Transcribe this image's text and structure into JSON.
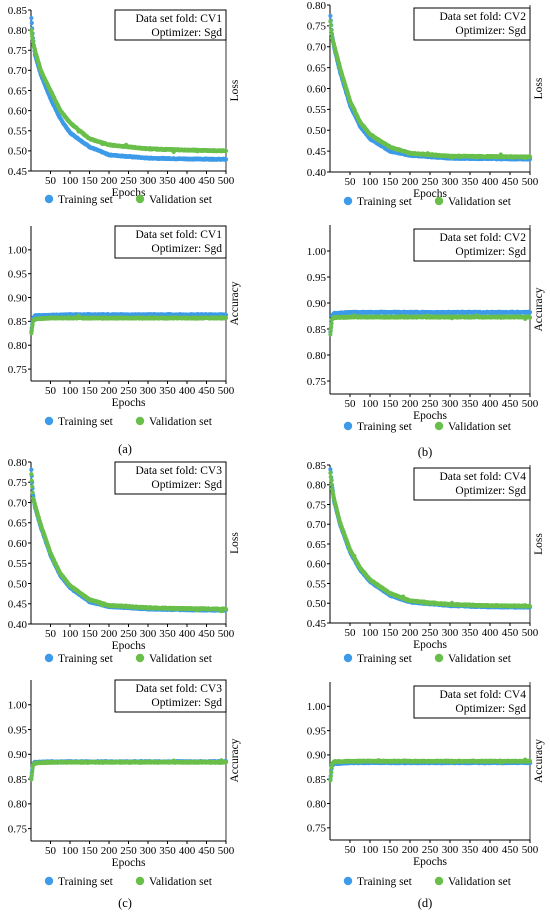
{
  "legend": {
    "training": "Training set",
    "validation": "Validation set",
    "training_color": "#3d9be9",
    "validation_color": "#6abf4b"
  },
  "panel_labels": [
    "(a)",
    "(b)",
    "(c)",
    "(d)"
  ],
  "chart_data": [
    {
      "type": "scatter",
      "panel": "(a)",
      "metric": "loss",
      "box_line1": "Data set fold: CV1",
      "box_line2": "Optimizer: Sgd",
      "xlabel": "Epochs",
      "ylabel": "Loss",
      "xlim": [
        0,
        500
      ],
      "ylim": [
        0.45,
        0.85
      ],
      "xticks": [
        50,
        100,
        150,
        200,
        250,
        300,
        350,
        400,
        450,
        500
      ],
      "yticks": [
        0.45,
        0.5,
        0.55,
        0.6,
        0.65,
        0.7,
        0.75,
        0.8,
        0.85
      ],
      "series": [
        {
          "name": "Training set",
          "color": "#3d9be9",
          "x": [
            1,
            5,
            10,
            25,
            50,
            75,
            100,
            150,
            200,
            300,
            400,
            500
          ],
          "y": [
            0.83,
            0.78,
            0.74,
            0.69,
            0.63,
            0.58,
            0.545,
            0.51,
            0.49,
            0.482,
            0.48,
            0.479
          ]
        },
        {
          "name": "Validation set",
          "color": "#6abf4b",
          "x": [
            1,
            5,
            10,
            25,
            50,
            75,
            100,
            150,
            200,
            300,
            400,
            500
          ],
          "y": [
            0.8,
            0.77,
            0.75,
            0.7,
            0.65,
            0.6,
            0.57,
            0.53,
            0.515,
            0.505,
            0.502,
            0.5
          ]
        }
      ]
    },
    {
      "type": "scatter",
      "panel": "(b)",
      "metric": "loss",
      "box_line1": "Data set fold: CV2",
      "box_line2": "Optimizer: Sgd",
      "xlabel": "Epochs",
      "ylabel": "Loss",
      "xlim": [
        0,
        500
      ],
      "ylim": [
        0.4,
        0.8
      ],
      "xticks": [
        50,
        100,
        150,
        200,
        250,
        300,
        350,
        400,
        450,
        500
      ],
      "yticks": [
        0.4,
        0.45,
        0.5,
        0.55,
        0.6,
        0.65,
        0.7,
        0.75,
        0.8
      ],
      "series": [
        {
          "name": "Training set",
          "color": "#3d9be9",
          "x": [
            1,
            5,
            10,
            25,
            50,
            75,
            100,
            150,
            200,
            300,
            400,
            500
          ],
          "y": [
            0.775,
            0.73,
            0.7,
            0.64,
            0.56,
            0.51,
            0.48,
            0.45,
            0.44,
            0.433,
            0.432,
            0.431
          ]
        },
        {
          "name": "Validation set",
          "color": "#6abf4b",
          "x": [
            1,
            5,
            10,
            25,
            50,
            75,
            100,
            150,
            200,
            300,
            400,
            500
          ],
          "y": [
            0.76,
            0.72,
            0.705,
            0.65,
            0.57,
            0.52,
            0.49,
            0.46,
            0.445,
            0.438,
            0.437,
            0.436
          ]
        }
      ]
    },
    {
      "type": "scatter",
      "panel": "(a)",
      "metric": "accuracy",
      "box_line1": "Data set fold: CV1",
      "box_line2": "Optimizer: Sgd",
      "xlabel": "Epochs",
      "ylabel": "Accuracy",
      "xlim": [
        0,
        500
      ],
      "ylim": [
        0.725,
        1.05
      ],
      "xticks": [
        50,
        100,
        150,
        200,
        250,
        300,
        350,
        400,
        450,
        500
      ],
      "yticks": [
        0.75,
        0.8,
        0.85,
        0.9,
        0.95,
        1.0
      ],
      "series": [
        {
          "name": "Training set",
          "color": "#3d9be9",
          "x": [
            1,
            5,
            10,
            50,
            100,
            200,
            300,
            400,
            500
          ],
          "y": [
            0.83,
            0.855,
            0.862,
            0.863,
            0.864,
            0.864,
            0.864,
            0.864,
            0.864
          ]
        },
        {
          "name": "Validation set",
          "color": "#6abf4b",
          "x": [
            1,
            5,
            10,
            50,
            100,
            200,
            300,
            400,
            500
          ],
          "y": [
            0.825,
            0.85,
            0.855,
            0.857,
            0.857,
            0.857,
            0.857,
            0.857,
            0.857
          ]
        }
      ]
    },
    {
      "type": "scatter",
      "panel": "(b)",
      "metric": "accuracy",
      "box_line1": "Data set fold: CV2",
      "box_line2": "Optimizer: Sgd",
      "xlabel": "Epochs",
      "ylabel": "Accuracy",
      "xlim": [
        0,
        500
      ],
      "ylim": [
        0.725,
        1.05
      ],
      "xticks": [
        50,
        100,
        150,
        200,
        250,
        300,
        350,
        400,
        450,
        500
      ],
      "yticks": [
        0.75,
        0.8,
        0.85,
        0.9,
        0.95,
        1.0
      ],
      "series": [
        {
          "name": "Training set",
          "color": "#3d9be9",
          "x": [
            1,
            5,
            10,
            50,
            100,
            200,
            300,
            400,
            500
          ],
          "y": [
            0.845,
            0.875,
            0.88,
            0.882,
            0.882,
            0.882,
            0.882,
            0.882,
            0.882
          ]
        },
        {
          "name": "Validation set",
          "color": "#6abf4b",
          "x": [
            1,
            5,
            10,
            50,
            100,
            200,
            300,
            400,
            500
          ],
          "y": [
            0.84,
            0.868,
            0.872,
            0.873,
            0.873,
            0.873,
            0.873,
            0.873,
            0.873
          ]
        }
      ]
    },
    {
      "type": "scatter",
      "panel": "(c)",
      "metric": "loss",
      "box_line1": "Data set fold: CV3",
      "box_line2": "Optimizer: Sgd",
      "xlabel": "Epochs",
      "ylabel": "Loss",
      "xlim": [
        0,
        500
      ],
      "ylim": [
        0.4,
        0.8
      ],
      "xticks": [
        50,
        100,
        150,
        200,
        250,
        300,
        350,
        400,
        450,
        500
      ],
      "yticks": [
        0.4,
        0.45,
        0.5,
        0.55,
        0.6,
        0.65,
        0.7,
        0.75,
        0.8
      ],
      "series": [
        {
          "name": "Training set",
          "color": "#3d9be9",
          "x": [
            1,
            5,
            10,
            25,
            50,
            75,
            100,
            150,
            200,
            300,
            400,
            500
          ],
          "y": [
            0.78,
            0.72,
            0.69,
            0.64,
            0.57,
            0.52,
            0.49,
            0.455,
            0.443,
            0.437,
            0.435,
            0.434
          ]
        },
        {
          "name": "Validation set",
          "color": "#6abf4b",
          "x": [
            1,
            5,
            10,
            25,
            50,
            75,
            100,
            150,
            200,
            300,
            400,
            500
          ],
          "y": [
            0.77,
            0.71,
            0.695,
            0.645,
            0.575,
            0.525,
            0.495,
            0.46,
            0.446,
            0.44,
            0.438,
            0.437
          ]
        }
      ]
    },
    {
      "type": "scatter",
      "panel": "(d)",
      "metric": "loss",
      "box_line1": "Data set fold: CV4",
      "box_line2": "Optimizer: Sgd",
      "xlabel": "Epochs",
      "ylabel": "Loss",
      "xlim": [
        0,
        500
      ],
      "ylim": [
        0.45,
        0.85
      ],
      "xticks": [
        50,
        100,
        150,
        200,
        250,
        300,
        350,
        400,
        450,
        500
      ],
      "yticks": [
        0.45,
        0.5,
        0.55,
        0.6,
        0.65,
        0.7,
        0.75,
        0.8,
        0.85
      ],
      "series": [
        {
          "name": "Training set",
          "color": "#3d9be9",
          "x": [
            1,
            5,
            10,
            25,
            50,
            75,
            100,
            150,
            200,
            300,
            400,
            500
          ],
          "y": [
            0.84,
            0.8,
            0.76,
            0.7,
            0.63,
            0.585,
            0.555,
            0.52,
            0.503,
            0.494,
            0.491,
            0.49
          ]
        },
        {
          "name": "Validation set",
          "color": "#6abf4b",
          "x": [
            1,
            5,
            10,
            25,
            50,
            75,
            100,
            150,
            200,
            300,
            400,
            500
          ],
          "y": [
            0.83,
            0.79,
            0.765,
            0.705,
            0.635,
            0.59,
            0.56,
            0.525,
            0.506,
            0.497,
            0.494,
            0.493
          ]
        }
      ]
    },
    {
      "type": "scatter",
      "panel": "(c)",
      "metric": "accuracy",
      "box_line1": "Data set fold: CV3",
      "box_line2": "Optimizer: Sgd",
      "xlabel": "Epochs",
      "ylabel": "Accuracy",
      "xlim": [
        0,
        500
      ],
      "ylim": [
        0.725,
        1.05
      ],
      "xticks": [
        50,
        100,
        150,
        200,
        250,
        300,
        350,
        400,
        450,
        500
      ],
      "yticks": [
        0.75,
        0.8,
        0.85,
        0.9,
        0.95,
        1.0
      ],
      "series": [
        {
          "name": "Training set",
          "color": "#3d9be9",
          "x": [
            1,
            5,
            10,
            50,
            100,
            200,
            300,
            400,
            500
          ],
          "y": [
            0.855,
            0.88,
            0.884,
            0.885,
            0.885,
            0.885,
            0.885,
            0.885,
            0.885
          ]
        },
        {
          "name": "Validation set",
          "color": "#6abf4b",
          "x": [
            1,
            5,
            10,
            50,
            100,
            200,
            300,
            400,
            500
          ],
          "y": [
            0.85,
            0.878,
            0.882,
            0.884,
            0.884,
            0.884,
            0.884,
            0.884,
            0.884
          ]
        }
      ]
    },
    {
      "type": "scatter",
      "panel": "(d)",
      "metric": "accuracy",
      "box_line1": "Data set fold: CV4",
      "box_line2": "Optimizer: Sgd",
      "xlabel": "Epochs",
      "ylabel": "Accuracy",
      "xlim": [
        0,
        500
      ],
      "ylim": [
        0.725,
        1.05
      ],
      "xticks": [
        50,
        100,
        150,
        200,
        250,
        300,
        350,
        400,
        450,
        500
      ],
      "yticks": [
        0.75,
        0.8,
        0.85,
        0.9,
        0.95,
        1.0
      ],
      "series": [
        {
          "name": "Training set",
          "color": "#3d9be9",
          "x": [
            1,
            5,
            10,
            50,
            100,
            200,
            300,
            400,
            500
          ],
          "y": [
            0.85,
            0.878,
            0.882,
            0.884,
            0.884,
            0.884,
            0.884,
            0.884,
            0.884
          ]
        },
        {
          "name": "Validation set",
          "color": "#6abf4b",
          "x": [
            1,
            5,
            10,
            50,
            100,
            200,
            300,
            400,
            500
          ],
          "y": [
            0.848,
            0.882,
            0.886,
            0.887,
            0.887,
            0.887,
            0.887,
            0.887,
            0.887
          ]
        }
      ]
    }
  ]
}
